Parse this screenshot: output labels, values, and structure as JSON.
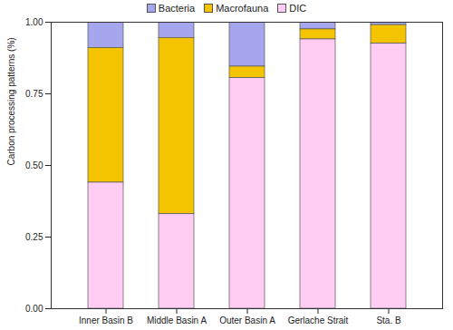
{
  "chart_data": {
    "type": "bar",
    "stacked": true,
    "legend": "top",
    "y_label": "Carbon processing patterns (%)",
    "categories": [
      "Inner Basin B",
      "Middle Basin A",
      "Outer Basin A",
      "Gerlache Strait",
      "Sta. B"
    ],
    "series": [
      {
        "name": "Bacteria",
        "color": "#a6a6ee",
        "values": [
          0.09,
          0.055,
          0.155,
          0.025,
          0.01
        ]
      },
      {
        "name": "Macrofauna",
        "color": "#f5c400",
        "values": [
          0.47,
          0.615,
          0.04,
          0.035,
          0.065
        ]
      },
      {
        "name": "DIC",
        "color": "#ffccf4",
        "values": [
          0.44,
          0.33,
          0.805,
          0.94,
          0.925
        ]
      }
    ],
    "ylim": [
      0,
      1
    ],
    "yticks": [
      {
        "value": 0,
        "label": "0.00"
      },
      {
        "value": 0.25,
        "label": "0.25"
      },
      {
        "value": 0.5,
        "label": "0.50"
      },
      {
        "value": 0.75,
        "label": "0.75"
      },
      {
        "value": 1,
        "label": "1.00"
      }
    ]
  }
}
